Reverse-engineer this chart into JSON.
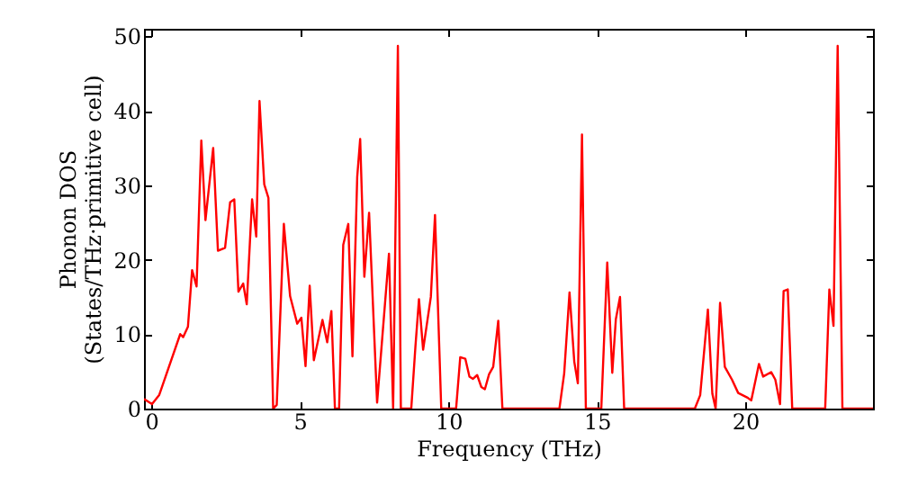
{
  "chart_data": {
    "type": "line",
    "xlabel": "Frequency (THz)",
    "ylabel": "Phonon DOS\n(States/THz·primitive cell)",
    "x": [
      -0.25,
      0.02,
      0.26,
      0.97,
      1.07,
      1.23,
      1.37,
      1.52,
      1.68,
      1.82,
      2.08,
      2.24,
      2.48,
      2.65,
      2.79,
      2.93,
      3.09,
      3.21,
      3.39,
      3.53,
      3.64,
      3.8,
      3.94,
      4.1,
      4.22,
      4.46,
      4.67,
      4.91,
      5.05,
      5.19,
      5.33,
      5.47,
      5.76,
      5.92,
      6.06,
      6.18,
      6.32,
      6.46,
      6.63,
      6.77,
      6.93,
      7.03,
      7.17,
      7.33,
      7.6,
      8.0,
      8.14,
      8.3,
      8.4,
      8.75,
      8.89,
      9.01,
      9.15,
      9.41,
      9.55,
      9.76,
      10.26,
      10.4,
      10.57,
      10.71,
      10.83,
      10.97,
      11.11,
      11.23,
      11.37,
      11.51,
      11.68,
      11.82,
      13.74,
      13.9,
      14.08,
      14.24,
      14.36,
      14.5,
      14.63,
      15.15,
      15.35,
      15.52,
      15.64,
      15.78,
      15.92,
      18.3,
      18.48,
      18.74,
      18.89,
      19.0,
      19.15,
      19.31,
      19.55,
      19.76,
      20.06,
      20.2,
      20.46,
      20.6,
      20.87,
      21.01,
      21.17,
      21.29,
      21.43,
      21.58,
      22.69,
      22.83,
      22.97,
      23.11,
      23.27,
      24.3
    ],
    "series": [
      {
        "color": "#ff0000",
        "values": [
          1.3,
          0.6,
          1.8,
          10,
          9.6,
          11,
          18.6,
          16.4,
          36,
          25.3,
          35,
          21.2,
          21.6,
          27.7,
          28.1,
          15.7,
          16.8,
          14,
          28.1,
          23.1,
          41.3,
          30.1,
          28.3,
          0,
          0.5,
          24.8,
          15.1,
          11.4,
          12.2,
          5.7,
          16.5,
          6.5,
          11.9,
          8.9,
          13.1,
          0,
          0,
          22,
          24.8,
          7,
          31.1,
          36.2,
          17.7,
          26.3,
          0.8,
          20.8,
          0,
          48.7,
          0,
          0,
          8.3,
          14.7,
          7.9,
          15,
          26,
          0,
          0,
          6.9,
          6.7,
          4.3,
          4,
          4.5,
          2.9,
          2.6,
          4.6,
          5.6,
          11.8,
          0,
          0,
          4.7,
          15.6,
          6.3,
          3.4,
          36.8,
          0,
          0,
          19.6,
          4.8,
          12,
          15,
          0,
          0,
          1.8,
          13.3,
          2,
          0,
          14.2,
          5.6,
          3.9,
          2.1,
          1.5,
          1.1,
          6,
          4.3,
          4.9,
          3.9,
          0.6,
          15.8,
          16,
          0,
          0,
          16,
          11.1,
          48.7,
          0,
          0
        ]
      }
    ],
    "xlim": [
      -0.25,
      24.3
    ],
    "ylim": [
      0,
      51
    ],
    "xticks": [
      0,
      5,
      10,
      15,
      20
    ],
    "yticks": [
      0,
      10,
      20,
      30,
      40,
      50
    ],
    "grid": false
  }
}
